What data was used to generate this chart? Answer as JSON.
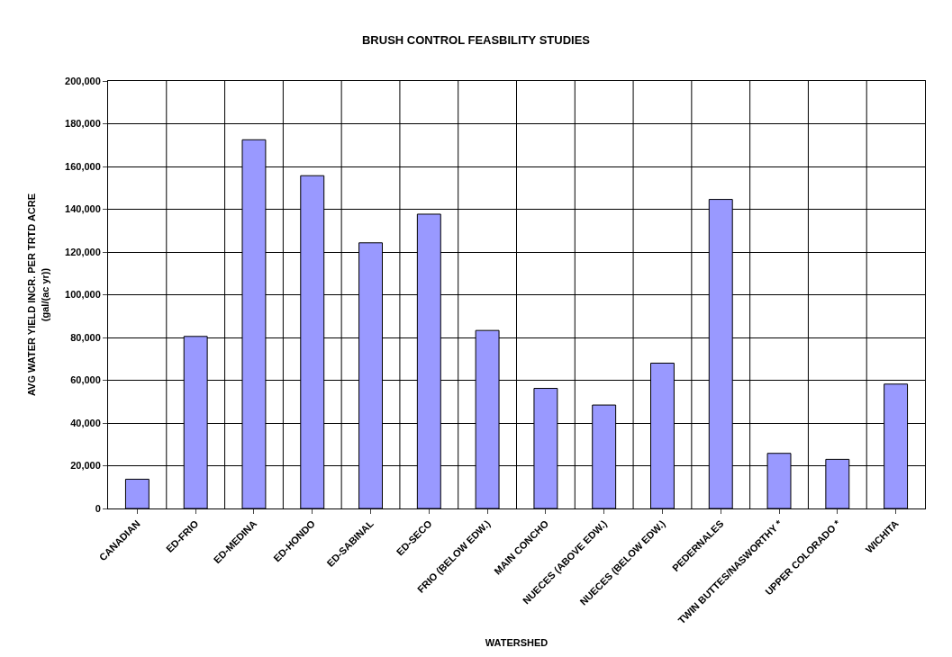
{
  "chart_data": {
    "type": "bar",
    "title": "BRUSH CONTROL FEASBILITY STUDIES",
    "xlabel": "WATERSHED",
    "ylabel": "AVG WATER YIELD INCR. PER TRTD ACRE\n(gal/(ac yr))",
    "categories": [
      "CANADIAN",
      "ED-FRIO",
      "ED-MEDINA",
      "ED-HONDO",
      "ED-SABINAL",
      "ED-SECO",
      "FRIO (BELOW EDW.)",
      "MAIN CONCHO",
      "NUECES (ABOVE EDW.)",
      "NUECES (BELOW EDW.)",
      "PEDERNALES",
      "TWIN BUTTES/NASWORTHY *",
      "UPPER COLORADO *",
      "WICHITA"
    ],
    "values": [
      13700,
      80500,
      172500,
      155700,
      124300,
      137700,
      83300,
      56200,
      48400,
      68000,
      144600,
      25800,
      23000,
      58200
    ],
    "color": "#9999ff",
    "ylim": [
      0,
      200000
    ],
    "yticks": [
      {
        "value": 0,
        "label": "0"
      },
      {
        "value": 20000,
        "label": "20,000"
      },
      {
        "value": 40000,
        "label": "40,000"
      },
      {
        "value": 60000,
        "label": "60,000"
      },
      {
        "value": 80000,
        "label": "80,000"
      },
      {
        "value": 100000,
        "label": "100,000"
      },
      {
        "value": 120000,
        "label": "120,000"
      },
      {
        "value": 140000,
        "label": "140,000"
      },
      {
        "value": 160000,
        "label": "160,000"
      },
      {
        "value": 180000,
        "label": "180,000"
      },
      {
        "value": 200000,
        "label": "200,000"
      }
    ],
    "grid": true,
    "legend": false
  }
}
